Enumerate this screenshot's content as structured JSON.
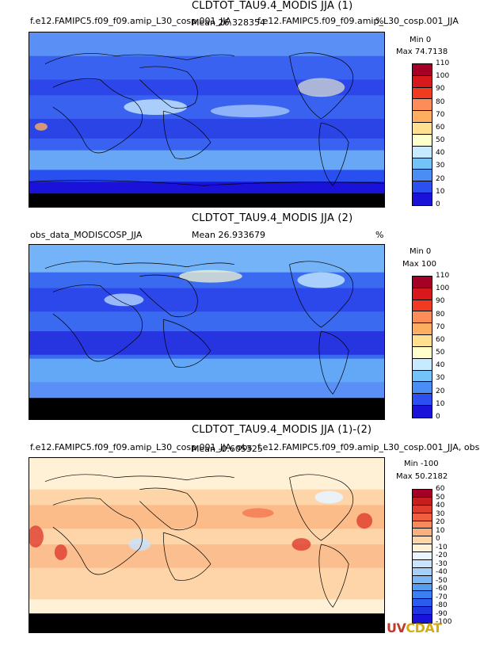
{
  "logo_text": {
    "u": "UV",
    "c": "CDAT"
  },
  "panels": [
    {
      "id": "p1",
      "title": "CLDTOT_TAU9.4_MODIS JJA (1)",
      "left_text": "f.e12.FAMIPC5.f09_f09.amip_L30_cosp.001_JJA",
      "mean_text": "Mean 26.328354",
      "right_text": "f.e12.FAMIPC5.f09_f09.amip_L30_cosp.001_JJA",
      "units": "%",
      "min_label": "Min 0",
      "max_label": "Max 74.7138",
      "colorbar_labels": [
        "110",
        "100",
        "90",
        "80",
        "70",
        "60",
        "50",
        "40",
        "30",
        "20",
        "10",
        "0"
      ],
      "colors": [
        "#a50026",
        "#d7191c",
        "#f03b20",
        "#fc8d59",
        "#fdae61",
        "#fee090",
        "#ffffcc",
        "#c6eaff",
        "#74c3f8",
        "#4a8ef5",
        "#2b4ff0",
        "#1a12d8"
      ],
      "map_tone": "pos"
    },
    {
      "id": "p2",
      "title": "CLDTOT_TAU9.4_MODIS JJA (2)",
      "left_text": "obs_data_MODISCOSP_JJA",
      "mean_text": "Mean 26.933679",
      "right_text": "",
      "units": "%",
      "min_label": "Min 0",
      "max_label": "Max 100",
      "colorbar_labels": [
        "110",
        "100",
        "90",
        "80",
        "70",
        "60",
        "50",
        "40",
        "30",
        "20",
        "10",
        "0"
      ],
      "colors": [
        "#a50026",
        "#d7191c",
        "#f03b20",
        "#fc8d59",
        "#fdae61",
        "#fee090",
        "#ffffcc",
        "#c6eaff",
        "#74c3f8",
        "#4a8ef5",
        "#2b4ff0",
        "#1a12d8"
      ],
      "map_tone": "pos"
    },
    {
      "id": "p3",
      "title": "CLDTOT_TAU9.4_MODIS JJA (1)-(2)",
      "left_text": "f.e12.FAMIPC5.f09_f09.amip_L30_cosp.001_JJA, obs",
      "mean_text": "Mean -0.605325",
      "right_text": "f.e12.FAMIPC5.f09_f09.amip_L30_cosp.001_JJA, obs",
      "units": "",
      "min_label": "Min -100",
      "max_label": "Max 50.2182",
      "colorbar_labels": [
        "60",
        "50",
        "40",
        "30",
        "20",
        "10",
        "0",
        "-10",
        "-20",
        "-30",
        "-40",
        "-50",
        "-60",
        "-70",
        "-80",
        "-90",
        "-100"
      ],
      "colors": [
        "#a50026",
        "#c81e1e",
        "#e03c2e",
        "#f06040",
        "#f68a5c",
        "#fab07e",
        "#fdd5a8",
        "#fff1d6",
        "#e8f4ff",
        "#c8e4ff",
        "#a4d0fa",
        "#7cb8f5",
        "#559df0",
        "#3b7ff0",
        "#2a5cf0",
        "#1f35e0",
        "#1a12d8"
      ],
      "map_tone": "diff"
    }
  ]
}
